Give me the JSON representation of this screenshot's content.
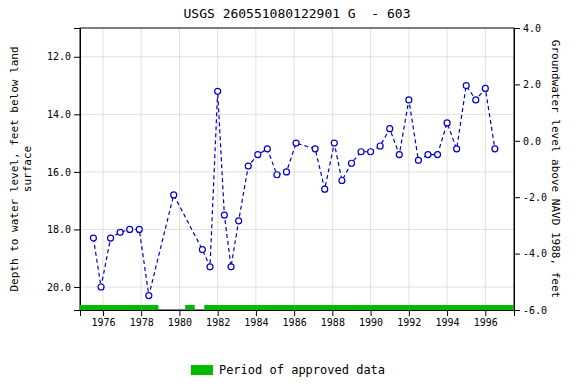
{
  "chart_data": {
    "type": "line",
    "title": "USGS 260551080122901 G  - 603",
    "y_label": "Depth to water level, feet below land\nsurface",
    "y2_label": "Groundwater level above NAVD 1988, feet",
    "x": [
      1975.5,
      1975.9,
      1976.4,
      1976.9,
      1977.4,
      1977.9,
      1978.4,
      1979.7,
      1981.2,
      1981.6,
      1982.0,
      1982.35,
      1982.7,
      1983.1,
      1983.6,
      1984.1,
      1984.6,
      1985.1,
      1985.6,
      1986.1,
      1987.1,
      1987.6,
      1988.1,
      1988.5,
      1989.0,
      1989.5,
      1990.0,
      1990.5,
      1991.0,
      1991.5,
      1992.0,
      1992.5,
      1993.0,
      1993.5,
      1994.0,
      1994.5,
      1995.0,
      1995.5,
      1996.0,
      1996.5
    ],
    "values": [
      18.3,
      20.0,
      18.3,
      18.1,
      18.0,
      18.0,
      20.3,
      16.8,
      18.7,
      19.3,
      13.2,
      17.5,
      19.3,
      17.7,
      15.8,
      15.4,
      15.2,
      16.1,
      16.0,
      15.0,
      15.2,
      16.6,
      15.0,
      16.3,
      15.7,
      15.3,
      15.3,
      15.1,
      14.5,
      15.4,
      13.5,
      15.6,
      15.4,
      15.4,
      14.3,
      15.2,
      13.0,
      13.5,
      13.1,
      15.2
    ],
    "color": "#0000cc",
    "marker": "circle",
    "line_style": "dashed",
    "xlim": [
      1974.8,
      1997.5
    ],
    "xticks": [
      1976,
      1978,
      1980,
      1982,
      1984,
      1986,
      1988,
      1990,
      1992,
      1994,
      1996
    ],
    "ylim": [
      20.8,
      11.0
    ],
    "yticks": [
      {
        "value": 12.0,
        "label": "12.0"
      },
      {
        "value": 14.0,
        "label": "14.0"
      },
      {
        "value": 16.0,
        "label": "16.0"
      },
      {
        "value": 18.0,
        "label": "18.0"
      },
      {
        "value": 20.0,
        "label": "20.0"
      }
    ],
    "y2lim": [
      -6.0,
      4.0
    ],
    "y2ticks": [
      {
        "value": 4.0,
        "label": "4.0"
      },
      {
        "value": 2.0,
        "label": "2.0"
      },
      {
        "value": 0.0,
        "label": "0.0"
      },
      {
        "value": -2.0,
        "label": "-2.0"
      },
      {
        "value": -4.0,
        "label": "-4.0"
      },
      {
        "value": -6.0,
        "label": "-6.0"
      }
    ],
    "grid": true,
    "legend": "bottom",
    "approved_periods": {
      "name": "Period of approved data",
      "color": "#00bb00",
      "segments": [
        [
          1974.8,
          1978.9
        ],
        [
          1980.3,
          1980.8
        ],
        [
          1981.3,
          1997.5
        ]
      ]
    }
  }
}
